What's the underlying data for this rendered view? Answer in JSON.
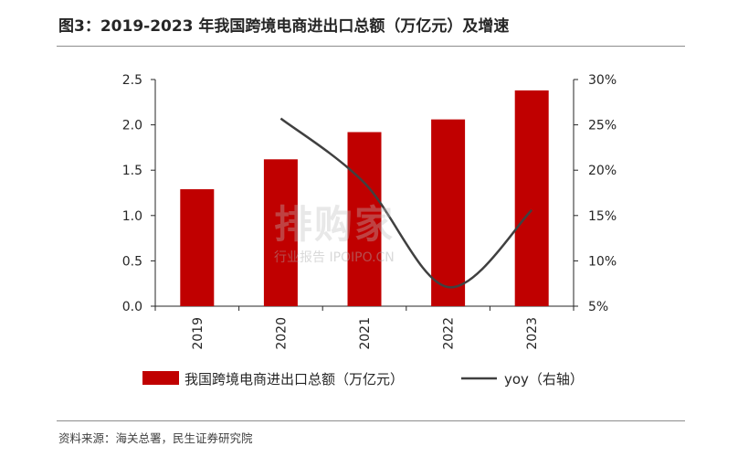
{
  "figure": {
    "title": "图3：2019-2023 年我国跨境电商进出口总额（万亿元）及增速",
    "source": "资料来源：海关总署，民生证券研究院"
  },
  "watermark": {
    "main": "排购家",
    "sub": "行业报告 IPOIPO.CN"
  },
  "chart_data": {
    "type": "bar",
    "categories": [
      "2019",
      "2020",
      "2021",
      "2022",
      "2023"
    ],
    "series": [
      {
        "name": "我国跨境电商进出口总额（万亿元）",
        "type": "bar",
        "axis": "left",
        "color": "#c00000",
        "values": [
          1.29,
          1.62,
          1.92,
          2.06,
          2.38
        ]
      },
      {
        "name": "yoy（右轴）",
        "type": "line",
        "axis": "right",
        "color": "#404040",
        "values": [
          null,
          25.7,
          18.6,
          7.1,
          15.6
        ]
      }
    ],
    "y_left": {
      "range": [
        0,
        2.5
      ],
      "ticks": [
        "0.0",
        "0.5",
        "1.0",
        "1.5",
        "2.0",
        "2.5"
      ]
    },
    "y_right": {
      "range": [
        5,
        30
      ],
      "ticks": [
        "5%",
        "10%",
        "15%",
        "20%",
        "25%",
        "30%"
      ]
    },
    "grid": false,
    "legend_position": "bottom"
  }
}
